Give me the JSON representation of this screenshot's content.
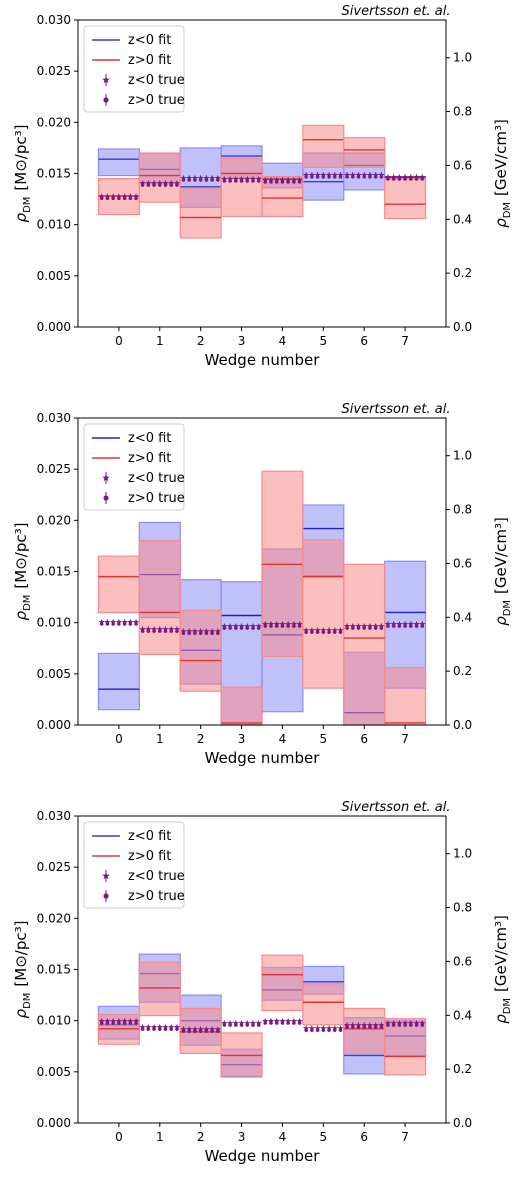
{
  "chart_data": [
    {
      "type": "bar",
      "watermark": "Sivertsson et. al.",
      "xlabel": "Wedge number",
      "ylabel_left_main": "ρ",
      "ylabel_left_sub": "DM",
      "ylabel_left_unit": "[M⊙/pc³]",
      "ylabel_right_main": "ρ",
      "ylabel_right_sub": "DM",
      "ylabel_right_unit": "[GeV/cm³]",
      "categories": [
        "0",
        "1",
        "2",
        "3",
        "4",
        "5",
        "6",
        "7"
      ],
      "xlim": [
        -1,
        8
      ],
      "ylim": [
        0,
        0.03
      ],
      "yticks": [
        "0.000",
        "0.005",
        "0.010",
        "0.015",
        "0.020",
        "0.025",
        "0.030"
      ],
      "right_yticks": [
        "0.0",
        "0.2",
        "0.4",
        "0.6",
        "0.8",
        "1.0"
      ],
      "legend": {
        "position": "top-left",
        "entries": [
          "z<0 fit",
          "z>0 fit",
          "z<0 true",
          "z>0 true"
        ]
      },
      "colors": {
        "z_lt0_fit": "#3a3ad6",
        "z_lt0_band": "#8c8cf5",
        "z_gt0_fit": "#e03434",
        "z_gt0_band": "#fa8a8a",
        "true": "#7a1a80"
      },
      "series": [
        {
          "name": "z<0 fit",
          "kind": "band",
          "center": [
            0.0164,
            0.0154,
            0.0137,
            0.0167,
            0.0145,
            0.0142,
            0.0158,
            0.0146
          ],
          "low": [
            0.0148,
            0.014,
            0.0117,
            0.0146,
            0.0136,
            0.0124,
            0.0134,
            0.0145
          ],
          "high": [
            0.0174,
            0.017,
            0.0175,
            0.0177,
            0.016,
            0.017,
            0.017,
            0.0147
          ]
        },
        {
          "name": "z>0 fit",
          "kind": "band",
          "center": [
            0.0128,
            0.0148,
            0.0107,
            0.015,
            0.0126,
            0.0183,
            0.0173,
            0.012
          ],
          "low": [
            0.011,
            0.0122,
            0.0087,
            0.0108,
            0.0108,
            0.0156,
            0.0156,
            0.0106
          ],
          "high": [
            0.0145,
            0.017,
            0.0135,
            0.0165,
            0.0147,
            0.0197,
            0.0185,
            0.0145
          ]
        },
        {
          "name": "z<0 true",
          "kind": "true",
          "values": [
            0.0127,
            0.014,
            0.0145,
            0.0144,
            0.0143,
            0.0148,
            0.0148,
            0.0146
          ]
        },
        {
          "name": "z>0 true",
          "kind": "true",
          "values": [
            0.0127,
            0.014,
            0.0145,
            0.0144,
            0.0143,
            0.0148,
            0.0148,
            0.0146
          ]
        }
      ]
    },
    {
      "type": "bar",
      "watermark": "Sivertsson et. al.",
      "xlabel": "Wedge number",
      "ylabel_left_main": "ρ",
      "ylabel_left_sub": "DM",
      "ylabel_left_unit": "[M⊙/pc³]",
      "ylabel_right_main": "ρ",
      "ylabel_right_sub": "DM",
      "ylabel_right_unit": "[GeV/cm³]",
      "categories": [
        "0",
        "1",
        "2",
        "3",
        "4",
        "5",
        "6",
        "7"
      ],
      "xlim": [
        -1,
        8
      ],
      "ylim": [
        0,
        0.03
      ],
      "yticks": [
        "0.000",
        "0.005",
        "0.010",
        "0.015",
        "0.020",
        "0.025",
        "0.030"
      ],
      "right_yticks": [
        "0.0",
        "0.2",
        "0.4",
        "0.6",
        "0.8",
        "1.0"
      ],
      "legend": {
        "position": "top-left",
        "entries": [
          "z<0 fit",
          "z>0 fit",
          "z<0 true",
          "z>0 true"
        ]
      },
      "colors": {
        "z_lt0_fit": "#2020cc",
        "z_lt0_band": "#8c8cf5",
        "z_gt0_fit": "#e03434",
        "z_gt0_band": "#fa8a8a",
        "true": "#7a1a80"
      },
      "series": [
        {
          "name": "z<0 fit",
          "kind": "band",
          "center": [
            0.0035,
            0.0147,
            0.0073,
            0.0107,
            0.0088,
            0.0192,
            0.0012,
            0.011
          ],
          "low": [
            0.0015,
            0.0105,
            0.004,
            0.0,
            0.0013,
            0.0146,
            0.0,
            0.0036
          ],
          "high": [
            0.007,
            0.0198,
            0.0142,
            0.014,
            0.0172,
            0.0215,
            0.0071,
            0.016
          ]
        },
        {
          "name": "z>0 fit",
          "kind": "band",
          "center": [
            0.0145,
            0.011,
            0.0063,
            0.0002,
            0.0157,
            0.0145,
            0.0085,
            0.0002
          ],
          "low": [
            0.011,
            0.0069,
            0.0033,
            0.0,
            0.0067,
            0.0036,
            0.0,
            0.0
          ],
          "high": [
            0.0165,
            0.018,
            0.0112,
            0.0037,
            0.0248,
            0.0181,
            0.0157,
            0.0056
          ]
        },
        {
          "name": "z<0 true",
          "kind": "true",
          "values": [
            0.01,
            0.0093,
            0.0091,
            0.0096,
            0.0098,
            0.0092,
            0.0096,
            0.0098
          ]
        },
        {
          "name": "z>0 true",
          "kind": "true",
          "values": [
            0.01,
            0.0093,
            0.0091,
            0.0096,
            0.0098,
            0.0092,
            0.0096,
            0.0098
          ]
        }
      ]
    },
    {
      "type": "bar",
      "watermark": "Sivertsson et. al.",
      "xlabel": "Wedge number",
      "ylabel_left_main": "ρ",
      "ylabel_left_sub": "DM",
      "ylabel_left_unit": "[M⊙/pc³]",
      "ylabel_right_main": "ρ",
      "ylabel_right_sub": "DM",
      "ylabel_right_unit": "[GeV/cm³]",
      "categories": [
        "0",
        "1",
        "2",
        "3",
        "4",
        "5",
        "6",
        "7"
      ],
      "xlim": [
        -1,
        8
      ],
      "ylim": [
        0,
        0.03
      ],
      "yticks": [
        "0.000",
        "0.005",
        "0.010",
        "0.015",
        "0.020",
        "0.025",
        "0.030"
      ],
      "right_yticks": [
        "0.0",
        "0.2",
        "0.4",
        "0.6",
        "0.8",
        "1.0"
      ],
      "legend": {
        "position": "top-left",
        "entries": [
          "z<0 fit",
          "z>0 fit",
          "z<0 true",
          "z>0 true"
        ]
      },
      "colors": {
        "z_lt0_fit": "#3a3ad6",
        "z_lt0_band": "#8c8cf5",
        "z_gt0_fit": "#e03434",
        "z_gt0_band": "#fa8a8a",
        "true": "#7a1a80"
      },
      "series": [
        {
          "name": "z<0 fit",
          "kind": "band",
          "center": [
            0.0096,
            0.0146,
            0.01,
            0.0057,
            0.013,
            0.0138,
            0.0066,
            0.0085
          ],
          "low": [
            0.0082,
            0.0118,
            0.0076,
            0.0045,
            0.012,
            0.0126,
            0.0048,
            0.0066
          ],
          "high": [
            0.0114,
            0.0165,
            0.0125,
            0.0072,
            0.0152,
            0.0153,
            0.0103,
            0.01
          ]
        },
        {
          "name": "z>0 fit",
          "kind": "band",
          "center": [
            0.0092,
            0.0132,
            0.0089,
            0.0066,
            0.0145,
            0.0118,
            0.0092,
            0.0065
          ],
          "low": [
            0.0077,
            0.0105,
            0.0068,
            0.0046,
            0.011,
            0.0096,
            0.0068,
            0.0047
          ],
          "high": [
            0.0106,
            0.0157,
            0.0112,
            0.0088,
            0.0164,
            0.0136,
            0.0112,
            0.0102
          ]
        },
        {
          "name": "z<0 true",
          "kind": "true",
          "values": [
            0.0099,
            0.0093,
            0.0091,
            0.0097,
            0.0099,
            0.0092,
            0.0095,
            0.0097
          ]
        },
        {
          "name": "z>0 true",
          "kind": "true",
          "values": [
            0.0099,
            0.0093,
            0.0091,
            0.0097,
            0.0099,
            0.0092,
            0.0095,
            0.0097
          ]
        }
      ]
    }
  ]
}
